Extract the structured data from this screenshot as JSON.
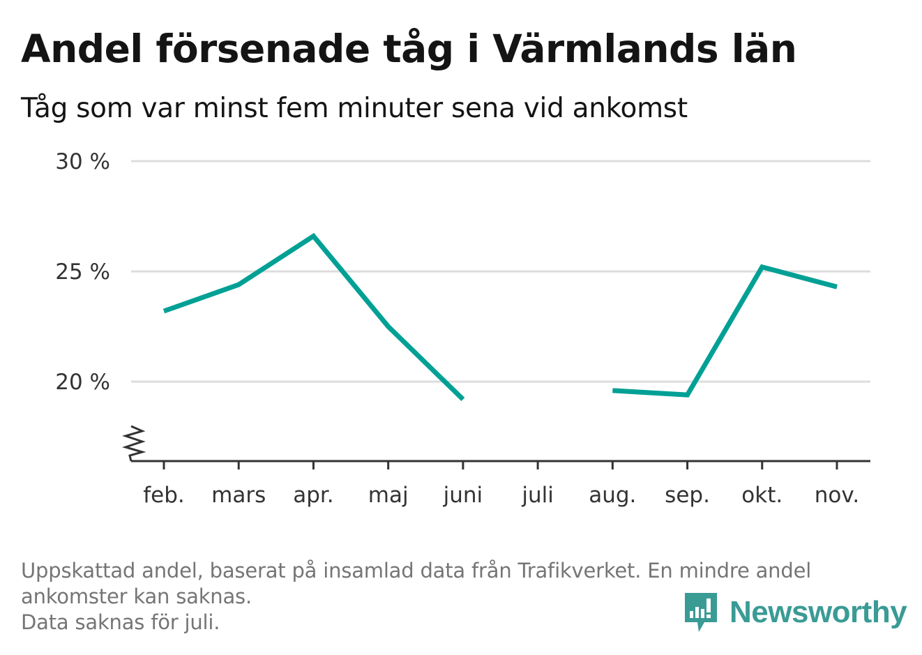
{
  "title": "Andel försenade tåg i Värmlands län",
  "subtitle": "Tåg som var minst fem minuter sena vid ankomst",
  "footnote": {
    "line1": "Uppskattad andel, baserat på insamlad data från Trafikverket. En mindre andel",
    "line2": "ankomster kan saknas.",
    "line3": "Data saknas för juli."
  },
  "brand": {
    "name": "Newsworthy",
    "logo_icon": "newsworthy-logo-icon",
    "color": "#3a9b95"
  },
  "colors": {
    "line": "#00a095",
    "grid": "#dddddd",
    "axis": "#333333"
  },
  "chart_data": {
    "type": "line",
    "categories": [
      "feb.",
      "mars",
      "apr.",
      "maj",
      "juni",
      "juli",
      "aug.",
      "sep.",
      "okt.",
      "nov."
    ],
    "series": [
      {
        "values": [
          23.2,
          24.4,
          26.6,
          22.5,
          19.2,
          null,
          19.6,
          19.4,
          25.2,
          24.3
        ]
      }
    ],
    "y_ticks": [
      {
        "value": 20,
        "label": "20 %"
      },
      {
        "value": 25,
        "label": "25 %"
      },
      {
        "value": 30,
        "label": "30 %"
      }
    ],
    "ylim": [
      16.4,
      30
    ],
    "y_axis_break": true,
    "grid": true,
    "legend": "none"
  }
}
